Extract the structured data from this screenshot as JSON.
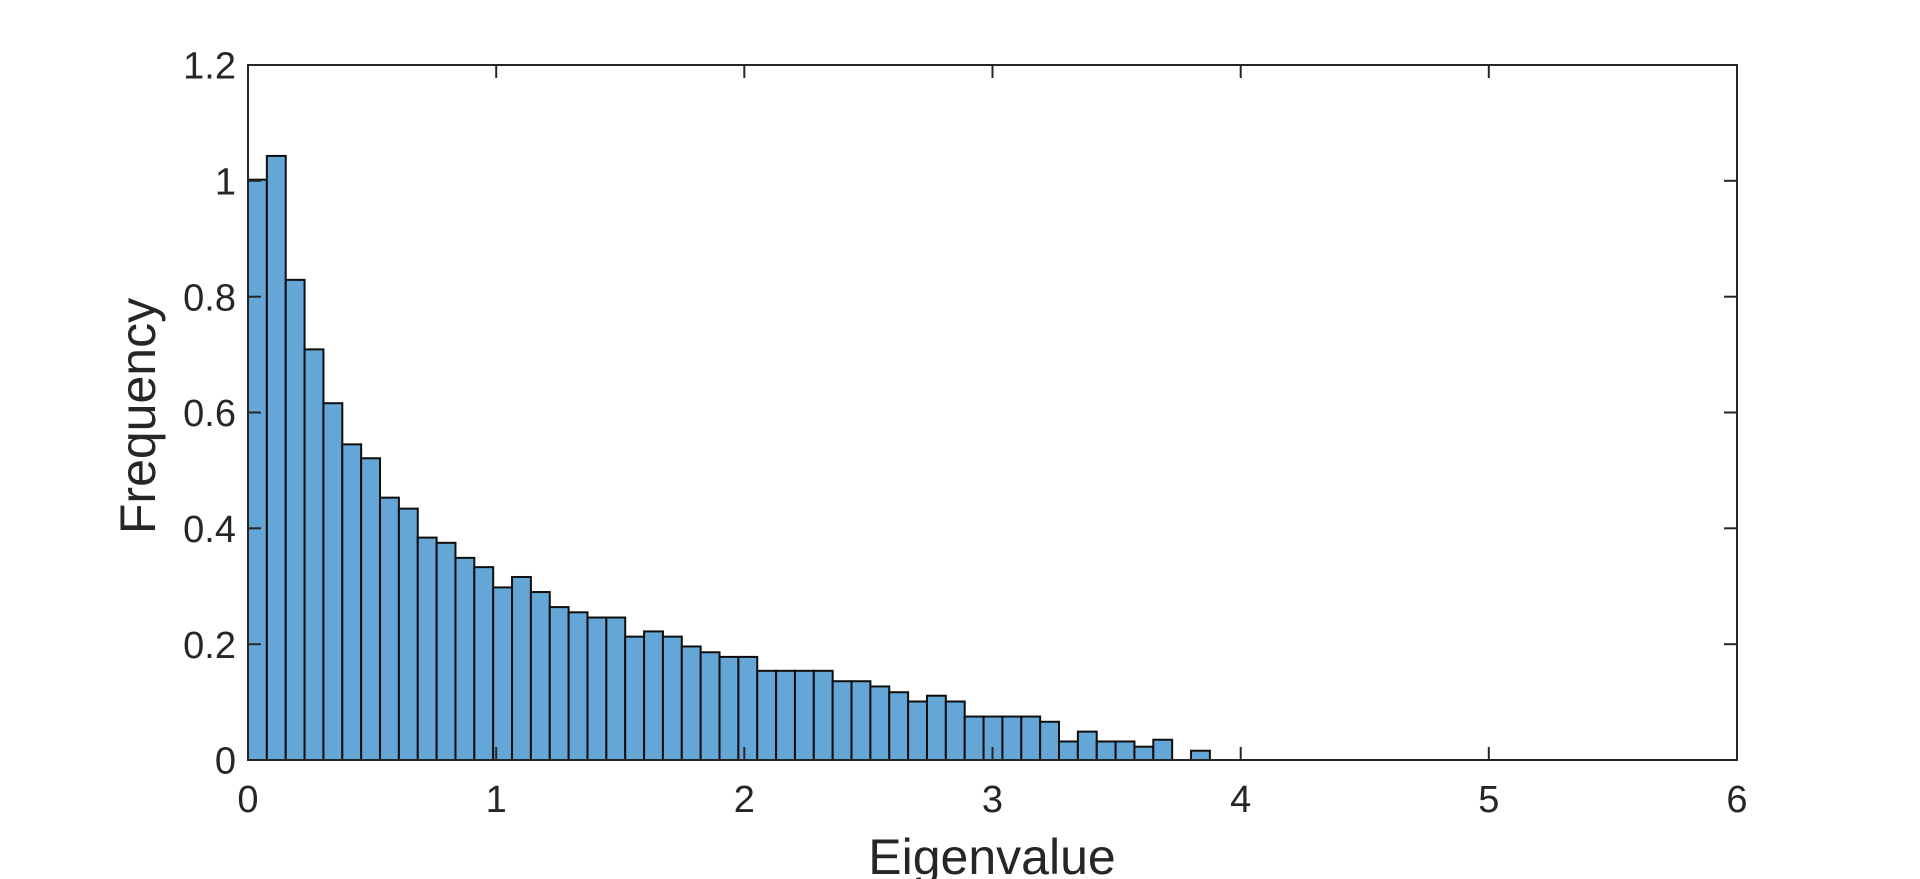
{
  "figure": {
    "kind": "matlab-style-figure",
    "background": "#ffffff"
  },
  "colors": {
    "bar_fill": "#64A7D6",
    "bar_edge": "#0e0e0e",
    "axis": "#262626",
    "text": "#262626",
    "background": "#ffffff"
  },
  "chart_data": {
    "type": "bar",
    "subtype": "histogram",
    "title": "",
    "xlabel": "Eigenvalue",
    "ylabel": "Frequency",
    "xlim": [
      0,
      6
    ],
    "ylim": [
      0,
      1.2
    ],
    "grid": false,
    "legend_position": "none",
    "box": true,
    "tick_direction": "in",
    "xticks": {
      "values": [
        0,
        1,
        2,
        3,
        4,
        5,
        6
      ],
      "labels": [
        "0",
        "1",
        "2",
        "3",
        "4",
        "5",
        "6"
      ]
    },
    "yticks": {
      "values": [
        0,
        0.2,
        0.4,
        0.6,
        0.8,
        1.0,
        1.2
      ],
      "labels": [
        "0",
        "0.2",
        "0.4",
        "0.6",
        "0.8",
        "1",
        "1.2"
      ]
    },
    "bin_start": 0,
    "bin_width": 0.076,
    "series": [
      {
        "name": "eigenvalue-density-histogram",
        "values": [
          1.002,
          1.043,
          0.829,
          0.709,
          0.616,
          0.545,
          0.521,
          0.453,
          0.434,
          0.384,
          0.375,
          0.349,
          0.333,
          0.298,
          0.316,
          0.29,
          0.264,
          0.255,
          0.246,
          0.246,
          0.213,
          0.222,
          0.213,
          0.196,
          0.186,
          0.178,
          0.178,
          0.154,
          0.154,
          0.154,
          0.154,
          0.136,
          0.136,
          0.127,
          0.117,
          0.101,
          0.111,
          0.101,
          0.075,
          0.075,
          0.075,
          0.075,
          0.066,
          0.032,
          0.049,
          0.032,
          0.032,
          0.023,
          0.035,
          0.0,
          0.016
        ]
      }
    ]
  }
}
